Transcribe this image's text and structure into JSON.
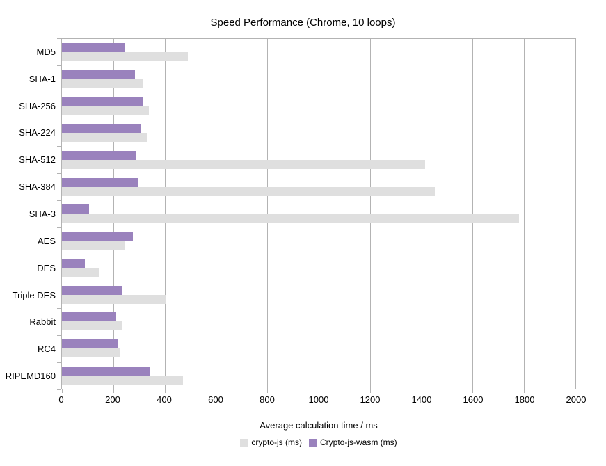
{
  "chart_data": {
    "type": "bar",
    "orientation": "horizontal",
    "title": "Speed Performance (Chrome, 10 loops)",
    "xlabel": "Average calculation time / ms",
    "xlim": [
      0,
      2000
    ],
    "xticks": [
      0,
      200,
      400,
      600,
      800,
      1000,
      1200,
      1400,
      1600,
      1800,
      2000
    ],
    "grid": true,
    "legend_position": "bottom",
    "categories": [
      "MD5",
      "SHA-1",
      "SHA-256",
      "SHA-224",
      "SHA-512",
      "SHA-384",
      "SHA-3",
      "AES",
      "DES",
      "Triple DES",
      "Rabbit",
      "RC4",
      "RIPEMD160"
    ],
    "series": [
      {
        "name": "crypto-js (ms)",
        "color": "#dfdfdf",
        "values": [
          490,
          315,
          340,
          333,
          1415,
          1452,
          1781,
          246,
          146,
          405,
          233,
          226,
          471
        ]
      },
      {
        "name": "Crypto-js-wasm (ms)",
        "color": "#9a82bd",
        "values": [
          245,
          285,
          318,
          308,
          286,
          299,
          105,
          276,
          90,
          237,
          212,
          218,
          343
        ]
      }
    ],
    "bar_draw_order_note": "Within each category row the Crypto-js-wasm bar is drawn on top and the crypto-js bar below it"
  },
  "colors": {
    "background": "#ffffff",
    "axis_and_grid": "#b3b3b3",
    "text": "#000000"
  }
}
